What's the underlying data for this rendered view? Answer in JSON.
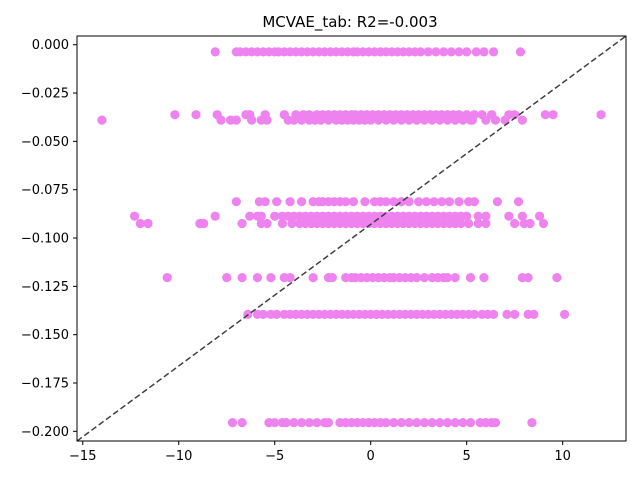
{
  "chart_data": {
    "type": "scatter",
    "title": "MCVAE_tab: R2=-0.003",
    "xlabel": "",
    "ylabel": "",
    "xlim": [
      -15.3,
      13.3
    ],
    "ylim": [
      -0.205,
      0.0045
    ],
    "x_ticks": [
      -15,
      -10,
      -5,
      0,
      5,
      10
    ],
    "x_tick_labels": [
      "−15",
      "−10",
      "−5",
      "0",
      "5",
      "10"
    ],
    "y_ticks": [
      0.0,
      -0.025,
      -0.05,
      -0.075,
      -0.1,
      -0.125,
      -0.15,
      -0.175,
      -0.2
    ],
    "y_tick_labels": [
      "0.000",
      "−0.025",
      "−0.050",
      "−0.075",
      "−0.100",
      "−0.125",
      "−0.150",
      "−0.175",
      "−0.200"
    ],
    "grid": false,
    "marker_color": "#ee82ee",
    "reference_line": {
      "style": "dashed",
      "color": "#404040",
      "points": [
        [
          -15.3,
          -0.205
        ],
        [
          13.3,
          0.0045
        ]
      ]
    },
    "rows": [
      {
        "y": -0.0037,
        "x": [
          -8.1,
          -7.0,
          -6.8,
          -6.5,
          -6.2,
          -5.9,
          -5.6,
          -5.3,
          -5.0,
          -4.8,
          -4.5,
          -4.2,
          -3.9,
          -3.6,
          -3.3,
          -3.0,
          -2.7,
          -2.4,
          -2.1,
          -1.8,
          -1.5,
          -1.2,
          -0.9,
          -0.7,
          -0.4,
          -0.1,
          0.2,
          0.5,
          0.8,
          1.1,
          1.4,
          1.7,
          2.0,
          2.3,
          2.6,
          3.0,
          3.4,
          3.8,
          4.2,
          4.6,
          5.0,
          5.5,
          5.9,
          6.4,
          7.8
        ]
      },
      {
        "y": -0.0362,
        "x": [
          -10.2,
          -9.1,
          -8.0,
          -6.5,
          -6.3,
          -5.5,
          -4.5,
          -3.9,
          -3.5,
          -3.2,
          -2.8,
          -2.5,
          -2.2,
          -1.9,
          -1.6,
          -1.3,
          -1.0,
          -0.8,
          -0.5,
          -0.2,
          0.1,
          0.4,
          0.7,
          1.0,
          1.3,
          1.6,
          1.9,
          2.2,
          2.5,
          2.8,
          3.1,
          3.4,
          3.7,
          4.0,
          4.3,
          4.6,
          5.0,
          5.4,
          5.8,
          6.3,
          7.2,
          7.5,
          9.1,
          9.5,
          12.0
        ]
      },
      {
        "y": -0.039,
        "x": [
          -14.0,
          -7.8,
          -7.3,
          -7.0,
          -6.2,
          -5.7,
          -5.4,
          -4.3,
          -4.0,
          -3.6,
          -3.2,
          -2.9,
          -2.6,
          -2.2,
          -1.8,
          -1.5,
          -1.2,
          -0.9,
          -0.6,
          -0.3,
          0.0,
          0.4,
          0.8,
          1.2,
          1.6,
          2.0,
          2.4,
          2.8,
          3.2,
          3.6,
          4.0,
          4.4,
          4.8,
          5.2,
          5.3,
          6.0,
          6.5,
          7.0,
          7.9
        ]
      },
      {
        "y": -0.0812,
        "x": [
          -7.0,
          -5.8,
          -5.5,
          -4.9,
          -4.2,
          -3.6,
          -3.0,
          -2.7,
          -2.5,
          -2.2,
          -1.9,
          -1.6,
          -1.3,
          -0.9,
          -0.3,
          0.2,
          0.5,
          0.8,
          1.2,
          1.6,
          2.0,
          2.5,
          2.9,
          3.3,
          3.7,
          4.1,
          4.6,
          5.1,
          5.4,
          6.6,
          7.7
        ]
      },
      {
        "y": -0.0887,
        "x": [
          -12.3,
          -8.1,
          -6.3,
          -5.9,
          -5.7,
          -5.0,
          -4.6,
          -4.3,
          -4.0,
          -3.7,
          -3.4,
          -3.1,
          -2.8,
          -2.5,
          -2.2,
          -1.9,
          -1.6,
          -1.3,
          -1.0,
          -0.7,
          -0.4,
          -0.1,
          0.2,
          0.5,
          0.8,
          1.1,
          1.4,
          1.7,
          2.0,
          2.3,
          2.6,
          2.9,
          3.2,
          3.5,
          3.8,
          4.1,
          4.4,
          4.7,
          5.0,
          5.6,
          6.0,
          7.2,
          7.9,
          8.8
        ]
      },
      {
        "y": -0.0925,
        "x": [
          -12.0,
          -11.6,
          -8.9,
          -8.7,
          -6.7,
          -5.7,
          -5.4,
          -4.6,
          -4.1,
          -3.7,
          -3.4,
          -3.1,
          -2.8,
          -2.5,
          -2.2,
          -1.9,
          -1.6,
          -1.3,
          -1.0,
          -0.7,
          -0.4,
          -0.1,
          0.2,
          0.5,
          0.8,
          1.1,
          1.4,
          1.7,
          2.0,
          2.3,
          2.6,
          2.9,
          3.2,
          3.5,
          3.8,
          4.1,
          4.4,
          4.7,
          5.1,
          5.6,
          6.0,
          7.5,
          8.0,
          8.3,
          9.0
        ]
      },
      {
        "y": -0.1205,
        "x": [
          -10.6,
          -7.5,
          -6.7,
          -5.9,
          -5.2,
          -4.5,
          -4.2,
          -3.0,
          -2.2,
          -2.0,
          -1.3,
          -1.0,
          -0.8,
          -0.5,
          -0.2,
          0.1,
          0.4,
          0.7,
          1.0,
          1.2,
          1.5,
          1.8,
          2.1,
          2.4,
          2.8,
          3.2,
          3.5,
          3.8,
          4.0,
          4.4,
          5.2,
          5.9,
          7.9,
          8.2,
          9.7
        ]
      },
      {
        "y": -0.1395,
        "x": [
          -6.4,
          -5.9,
          -5.6,
          -5.2,
          -4.9,
          -4.5,
          -4.2,
          -3.9,
          -3.6,
          -3.3,
          -3.0,
          -2.7,
          -2.4,
          -2.1,
          -1.8,
          -1.5,
          -1.2,
          -0.9,
          -0.6,
          -0.3,
          0.0,
          0.3,
          0.6,
          0.9,
          1.2,
          1.5,
          1.8,
          2.1,
          2.4,
          2.7,
          3.0,
          3.3,
          3.6,
          3.9,
          4.2,
          4.5,
          4.8,
          5.1,
          5.4,
          5.8,
          6.1,
          6.4,
          7.1,
          7.5,
          8.2,
          8.5,
          10.1
        ]
      },
      {
        "y": -0.1955,
        "x": [
          -7.2,
          -6.7,
          -5.3,
          -5.0,
          -4.6,
          -4.4,
          -4.0,
          -3.6,
          -3.2,
          -2.8,
          -2.4,
          -2.2,
          -1.6,
          -1.3,
          -1.0,
          -0.7,
          -0.4,
          -0.1,
          0.2,
          0.5,
          0.8,
          1.2,
          1.6,
          2.0,
          2.4,
          2.8,
          3.2,
          3.6,
          4.0,
          4.4,
          4.8,
          5.2,
          5.7,
          6.0,
          6.3,
          6.5,
          8.4
        ]
      }
    ]
  }
}
